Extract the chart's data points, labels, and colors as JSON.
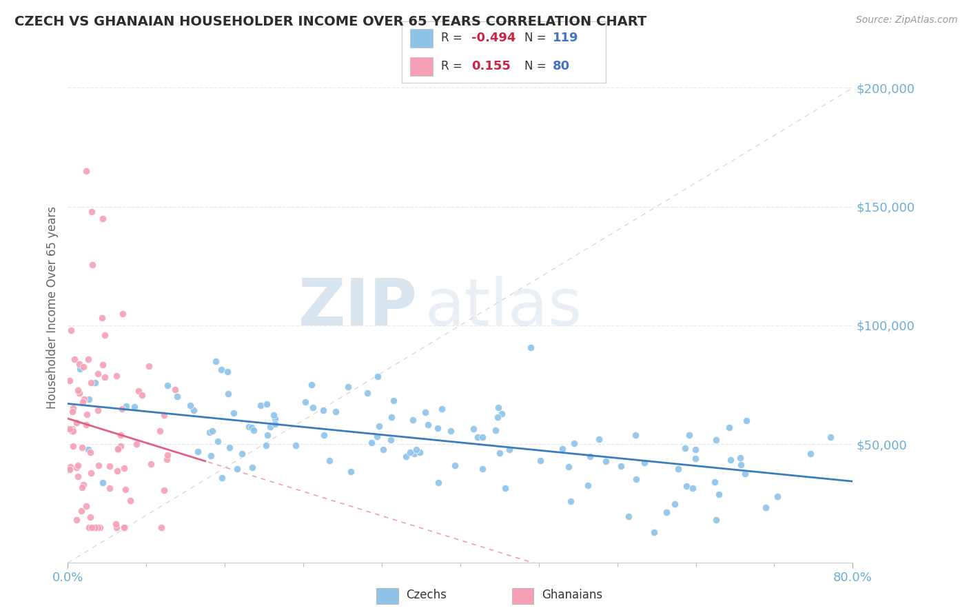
{
  "title": "CZECH VS GHANAIAN HOUSEHOLDER INCOME OVER 65 YEARS CORRELATION CHART",
  "source_text": "Source: ZipAtlas.com",
  "ylabel": "Householder Income Over 65 years",
  "ytick_values": [
    0,
    50000,
    100000,
    150000,
    200000
  ],
  "ytick_labels": [
    "",
    "$50,000",
    "$100,000",
    "$150,000",
    "$200,000"
  ],
  "czech_R": -0.494,
  "czech_N": 119,
  "ghana_R": 0.155,
  "ghana_N": 80,
  "czech_color": "#8dc4e8",
  "ghana_color": "#f5a0b5",
  "czech_trend_color": "#3a7dbf",
  "ghana_trend_color": "#e06080",
  "ref_line_color": "#d8d8d8",
  "title_color": "#2d2d2d",
  "axis_tick_color": "#6baed6",
  "watermark_zip": "ZIP",
  "watermark_atlas": "atlas",
  "bg_color": "#ffffff",
  "xlim_min": 0.0,
  "xlim_max": 0.8,
  "ylim_min": 0,
  "ylim_max": 215000,
  "grid_color": "#e8e8e8",
  "legend_r_color": "#cc2244",
  "legend_n_color": "#4472c4",
  "legend_text_color": "#333333"
}
